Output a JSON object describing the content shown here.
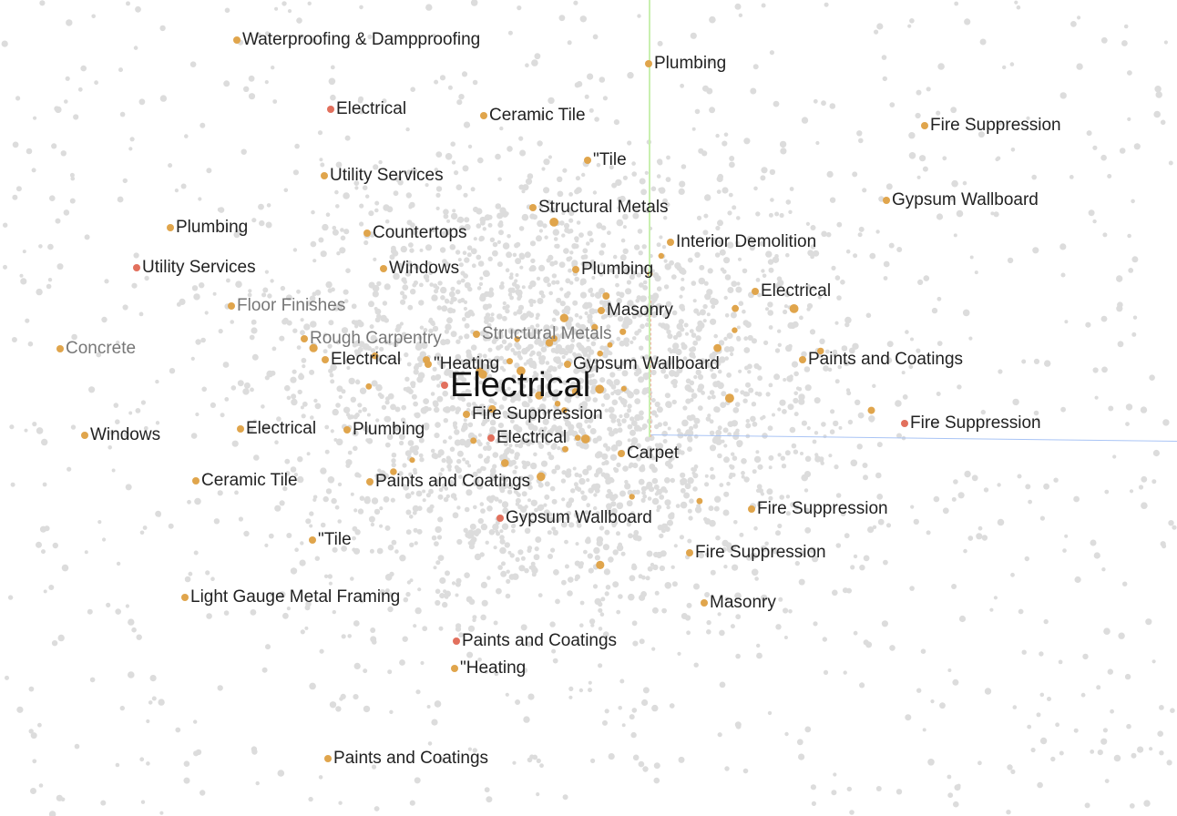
{
  "colors": {
    "background": "#ffffff",
    "scatter": "#dcdcdc",
    "neighbor": "#e0a54c",
    "highlight": "#e2705d"
  },
  "focus": {
    "label": "Electrical",
    "dot_color": "#e2705d"
  },
  "labels": [
    {
      "text": "Waterproofing & Dampproofing",
      "color": "#e0a54c"
    },
    {
      "text": "Plumbing",
      "color": "#e0a54c"
    },
    {
      "text": "Electrical",
      "color": "#e2705d"
    },
    {
      "text": "Ceramic Tile",
      "color": "#e0a54c"
    },
    {
      "text": "Fire Suppression",
      "color": "#e0a54c"
    },
    {
      "text": "\"Tile",
      "color": "#e0a54c"
    },
    {
      "text": "Utility Services",
      "color": "#e0a54c"
    },
    {
      "text": "Structural Metals",
      "color": "#e0a54c"
    },
    {
      "text": "Gypsum Wallboard",
      "color": "#e0a54c"
    },
    {
      "text": "Plumbing",
      "color": "#e0a54c"
    },
    {
      "text": "Countertops",
      "color": "#e0a54c"
    },
    {
      "text": "Interior Demolition",
      "color": "#e0a54c"
    },
    {
      "text": "Utility Services",
      "color": "#e2705d"
    },
    {
      "text": "Windows",
      "color": "#e0a54c"
    },
    {
      "text": "Plumbing",
      "color": "#e0a54c"
    },
    {
      "text": "Electrical",
      "color": "#e0a54c"
    },
    {
      "text": "Floor Finishes",
      "color": "#e0a54c"
    },
    {
      "text": "Masonry",
      "color": "#e0a54c"
    },
    {
      "text": "Rough Carpentry",
      "color": "#e0a54c"
    },
    {
      "text": "Structural Metals",
      "color": "#e0a54c"
    },
    {
      "text": "Concrete",
      "color": "#e0a54c"
    },
    {
      "text": "Electrical",
      "color": "#e0a54c"
    },
    {
      "text": "\"Heating",
      "color": "#e0a54c"
    },
    {
      "text": "Gypsum Wallboard",
      "color": "#e0a54c"
    },
    {
      "text": "Paints and Coatings",
      "color": "#e0a54c"
    },
    {
      "text": "Fire Suppression",
      "color": "#e0a54c"
    },
    {
      "text": "Fire Suppression",
      "color": "#e2705d"
    },
    {
      "text": "Windows",
      "color": "#e0a54c"
    },
    {
      "text": "Electrical",
      "color": "#e0a54c"
    },
    {
      "text": "Plumbing",
      "color": "#e0a54c"
    },
    {
      "text": "Electrical",
      "color": "#e2705d"
    },
    {
      "text": "Carpet",
      "color": "#e0a54c"
    },
    {
      "text": "Ceramic Tile",
      "color": "#e0a54c"
    },
    {
      "text": "Paints and Coatings",
      "color": "#e0a54c"
    },
    {
      "text": "Fire Suppression",
      "color": "#e0a54c"
    },
    {
      "text": "Gypsum Wallboard",
      "color": "#e2705d"
    },
    {
      "text": "\"Tile",
      "color": "#e0a54c"
    },
    {
      "text": "Fire Suppression",
      "color": "#e0a54c"
    },
    {
      "text": "Light Gauge Metal Framing",
      "color": "#e0a54c"
    },
    {
      "text": "Masonry",
      "color": "#e0a54c"
    },
    {
      "text": "Paints and Coatings",
      "color": "#e2705d"
    },
    {
      "text": "\"Heating",
      "color": "#e0a54c"
    },
    {
      "text": "Paints and Coatings",
      "color": "#e0a54c"
    }
  ]
}
